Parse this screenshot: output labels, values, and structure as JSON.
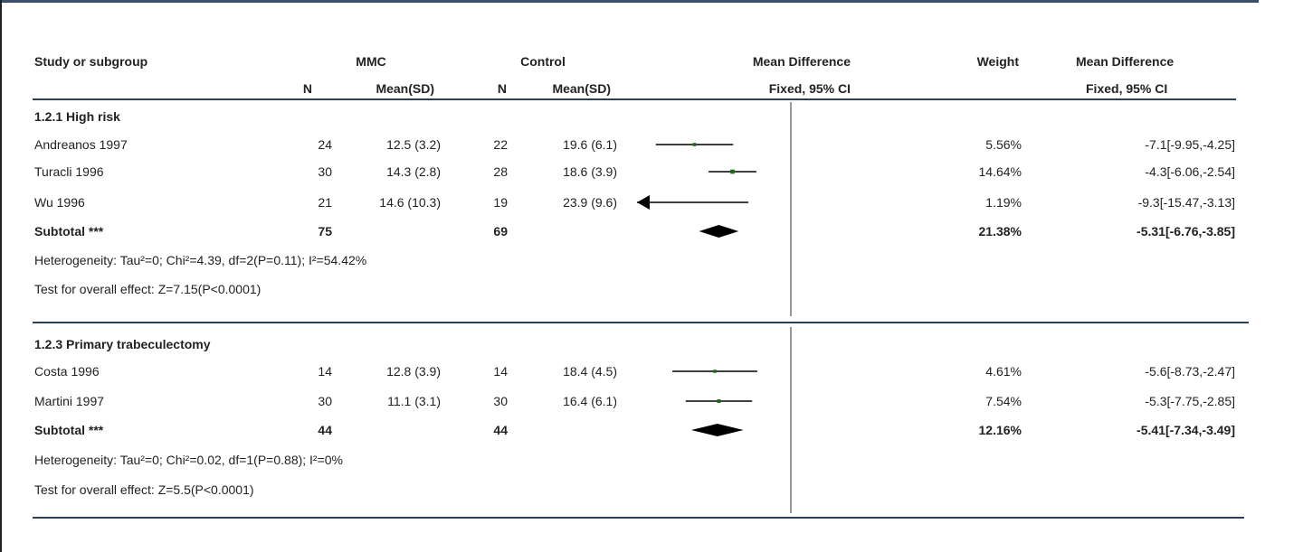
{
  "headers": {
    "study": "Study or subgroup",
    "mmc": "MMC",
    "control": "Control",
    "md": "Mean Difference",
    "weight": "Weight",
    "md2": "Mean Difference",
    "n1": "N",
    "mean1": "Mean(SD)",
    "n2": "N",
    "mean2": "Mean(SD)",
    "fixed": "Fixed, 95% CI",
    "fixed2": "Fixed, 95% CI"
  },
  "groups": [
    {
      "title": "1.2.1 High risk",
      "studies": [
        {
          "name": "Andreanos 1997",
          "n1": "24",
          "mean1": "12.5 (3.2)",
          "n2": "22",
          "mean2": "19.6 (6.1)",
          "weight": "5.56%",
          "ci": "-7.1[-9.95,-4.25]"
        },
        {
          "name": "Turacli 1996",
          "n1": "30",
          "mean1": "14.3 (2.8)",
          "n2": "28",
          "mean2": "18.6 (3.9)",
          "weight": "14.64%",
          "ci": "-4.3[-6.06,-2.54]"
        },
        {
          "name": "Wu 1996",
          "n1": "21",
          "mean1": "14.6 (10.3)",
          "n2": "19",
          "mean2": "23.9 (9.6)",
          "weight": "1.19%",
          "ci": "-9.3[-15.47,-3.13]"
        }
      ],
      "subtotal": {
        "label": "Subtotal ***",
        "n1": "75",
        "n2": "69",
        "weight": "21.38%",
        "ci": "-5.31[-6.76,-3.85]"
      },
      "heterogeneity": "Heterogeneity: Tau²=0; Chi²=4.39, df=2(P=0.11); I²=54.42%",
      "overall": "Test for overall effect: Z=7.15(P<0.0001)"
    },
    {
      "title": "1.2.3 Primary trabeculectomy",
      "studies": [
        {
          "name": "Costa 1996",
          "n1": "14",
          "mean1": "12.8 (3.9)",
          "n2": "14",
          "mean2": "18.4 (4.5)",
          "weight": "4.61%",
          "ci": "-5.6[-8.73,-2.47]"
        },
        {
          "name": "Martini 1997",
          "n1": "30",
          "mean1": "11.1 (3.1)",
          "n2": "30",
          "mean2": "16.4 (6.1)",
          "weight": "7.54%",
          "ci": "-5.3[-7.75,-2.85]"
        }
      ],
      "subtotal": {
        "label": "Subtotal ***",
        "n1": "44",
        "n2": "44",
        "weight": "12.16%",
        "ci": "-5.41[-7.34,-3.49]"
      },
      "heterogeneity": "Heterogeneity: Tau²=0; Chi²=0.02, df=1(P=0.88); I²=0%",
      "overall": "Test for overall effect: Z=5.5(P<0.0001)"
    }
  ],
  "chart_data": {
    "type": "forest",
    "effect_measure": "Mean Difference, Fixed, 95% CI",
    "null_value": 0,
    "study_points": [
      {
        "study": "Andreanos 1997",
        "md": -7.1,
        "lo": -9.95,
        "hi": -4.25,
        "weight": 5.56
      },
      {
        "study": "Turacli 1996",
        "md": -4.3,
        "lo": -6.06,
        "hi": -2.54,
        "weight": 14.64
      },
      {
        "study": "Wu 1996",
        "md": -9.3,
        "lo": -15.47,
        "hi": -3.13,
        "weight": 1.19
      },
      {
        "study": "Costa 1996",
        "md": -5.6,
        "lo": -8.73,
        "hi": -2.47,
        "weight": 4.61
      },
      {
        "study": "Martini 1997",
        "md": -5.3,
        "lo": -7.75,
        "hi": -2.85,
        "weight": 7.54
      }
    ],
    "subtotals": [
      {
        "group": "1.2.1 High risk",
        "md": -5.31,
        "lo": -6.76,
        "hi": -3.85,
        "weight": 21.38
      },
      {
        "group": "1.2.3 Primary trabeculectomy",
        "md": -5.41,
        "lo": -7.34,
        "hi": -3.49,
        "weight": 12.16
      }
    ],
    "colors": {
      "line": "#000000",
      "point": "#1a6b1a",
      "diamond": "#000000"
    }
  }
}
